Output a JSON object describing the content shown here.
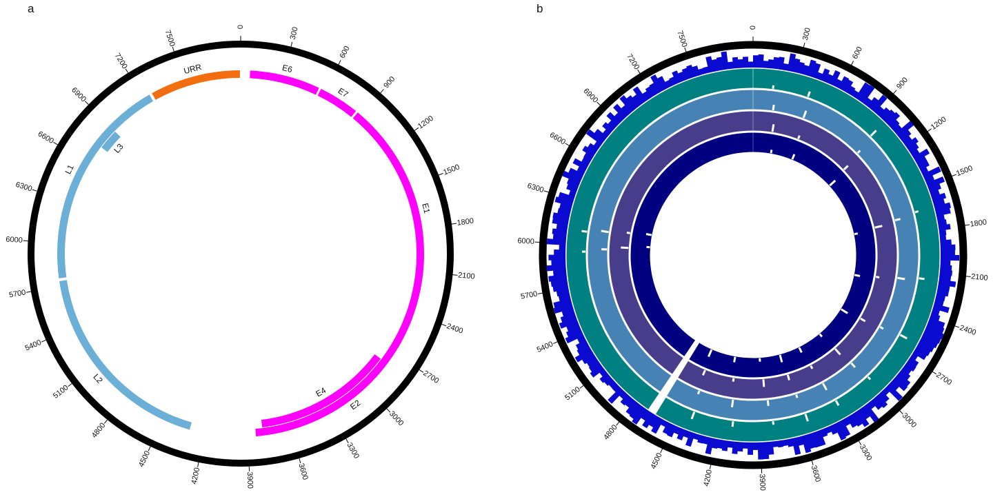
{
  "panels": {
    "a": {
      "label": "a",
      "genome_length": 7900,
      "tick_values": [
        0,
        300,
        600,
        900,
        1200,
        1500,
        1800,
        2100,
        2400,
        2700,
        3000,
        3300,
        3600,
        3900,
        4200,
        4500,
        4800,
        5100,
        5400,
        5700,
        6000,
        6300,
        6600,
        6900,
        7200,
        7500
      ],
      "tick_labels": [
        "0",
        "300",
        "600",
        "900",
        "1200",
        "1500",
        "1800",
        "2100",
        "2400",
        "2700",
        "3000",
        "3300",
        "3600",
        "3900",
        "4200",
        "4500",
        "4800",
        "5100",
        "5400",
        "5700",
        "6000",
        "6300",
        "6600",
        "6900",
        "7200",
        "7500"
      ],
      "genes": [
        {
          "name": "E6",
          "start": 60,
          "end": 560,
          "track": "outer",
          "color": "#ff00ff"
        },
        {
          "name": "E7",
          "start": 565,
          "end": 860,
          "track": "outer",
          "color": "#ff00ff"
        },
        {
          "name": "E1",
          "start": 865,
          "end": 2480,
          "track": "outer",
          "color": "#ff00ff"
        },
        {
          "name": "E2",
          "start": 2420,
          "end": 3850,
          "track": "outer",
          "color": "#ff00ff"
        },
        {
          "name": "E4",
          "start": 2780,
          "end": 3800,
          "track": "inner",
          "color": "#ff00ff"
        },
        {
          "name": "L2",
          "start": 4300,
          "end": 5740,
          "track": "outer",
          "color": "#6baed6"
        },
        {
          "name": "L1",
          "start": 5750,
          "end": 7250,
          "track": "outer",
          "color": "#6baed6"
        },
        {
          "name": "L3",
          "start": 6740,
          "end": 6900,
          "track": "inner",
          "color": "#6baed6"
        },
        {
          "name": "URR",
          "start": 7260,
          "end": 7900,
          "track": "outer",
          "color": "#f26d0f"
        }
      ]
    },
    "b": {
      "label": "b",
      "genome_length": 7900,
      "tick_values": [
        0,
        300,
        600,
        900,
        1200,
        1500,
        1800,
        2100,
        2400,
        2700,
        3000,
        3300,
        3600,
        3900,
        4200,
        4500,
        4800,
        5100,
        5400,
        5700,
        6000,
        6300,
        6600,
        6900,
        7200,
        7500
      ],
      "tick_labels": [
        "0",
        "300",
        "600",
        "900",
        "1200",
        "1500",
        "1800",
        "2100",
        "2400",
        "2700",
        "3000",
        "3300",
        "3600",
        "3900",
        "4200",
        "4500",
        "4800",
        "5100",
        "5400",
        "5700",
        "6000",
        "6300",
        "6600",
        "6900",
        "7200",
        "7500"
      ],
      "histogram_color": "#0a0ad0",
      "tracks": [
        {
          "color": "#008080"
        },
        {
          "color": "#4682b4"
        },
        {
          "color": "#483d8b"
        },
        {
          "color": "#000080"
        }
      ]
    }
  }
}
